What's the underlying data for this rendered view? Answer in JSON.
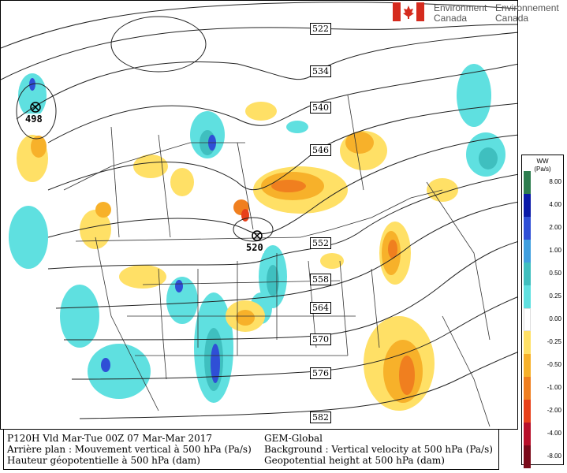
{
  "logo": {
    "left_line1": "Environment",
    "left_line2": "Canada",
    "right_line1": "Environnement",
    "right_line2": "Canada",
    "flag_color": "#d52b1e"
  },
  "info": {
    "left_line1": "P120H Vld Mar-Tue 00Z 07 Mar-Mar 2017",
    "left_line2": "Arrière plan : Mouvement vertical à 500 hPa (Pa/s)",
    "left_line3": "Hauteur géopotentielle à 500 hPa (dam)",
    "right_line1": "GEM-Global",
    "right_line2": "Background : Vertical velocity at 500 hPa (Pa/s)",
    "right_line3": "Geopotential height at 500 hPa (dam)"
  },
  "legend": {
    "title1": "WW",
    "title2": "(Pa/s)",
    "values": [
      "8.00",
      "4.00",
      "2.00",
      "1.00",
      "0.50",
      "0.25",
      "0.00",
      "-0.25",
      "-0.50",
      "-1.00",
      "-2.00",
      "-4.00",
      "-8.00"
    ],
    "colors": [
      "#2e7d4f",
      "#0a1aa8",
      "#2f4fd6",
      "#3f9fdf",
      "#3fbfbf",
      "#5fe0e0",
      "#ffffff",
      "#ffe066",
      "#f7b12a",
      "#f07f1f",
      "#e8401a",
      "#b8102a",
      "#7a0a1a"
    ]
  },
  "contours": {
    "labels": [
      "522",
      "534",
      "540",
      "546",
      "552",
      "558",
      "564",
      "570",
      "576",
      "582"
    ],
    "lows": [
      "498",
      "520"
    ]
  },
  "colors": {
    "contour_line": "#222222",
    "border_line": "#333333",
    "yellow": "#ffe066",
    "orange": "#f7b12a",
    "dark_orange": "#f07f1f",
    "cyan": "#5fe0e0",
    "teal": "#3fbfbf",
    "blue": "#2f4fd6",
    "purple": "#a0527a"
  }
}
